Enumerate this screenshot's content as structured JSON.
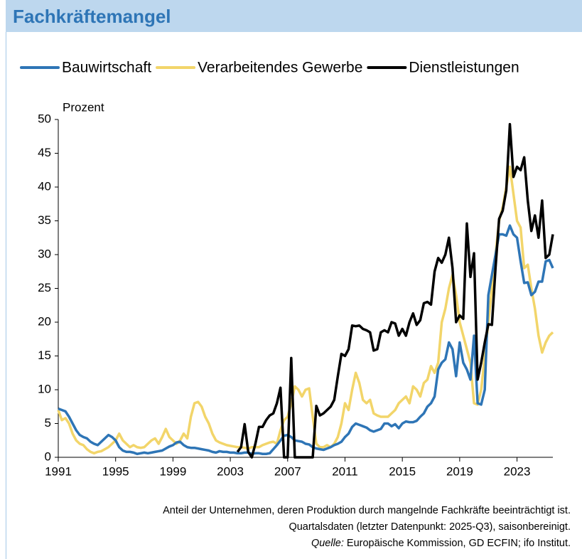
{
  "chart_data": {
    "type": "line",
    "title": "Fachkräftemangel",
    "y_label": "Prozent",
    "footnote": [
      "Anteil der Unternehmen, deren Produktion durch mangelnde Fachkräfte beeinträchtigt ist.",
      "Quartalsdaten (letzter Datenpunkt: 2025-Q3), saisonbereinigt."
    ],
    "source_label": "Quelle:",
    "source_text": "Europäische Kommission, GD ECFIN; ifo Institut.",
    "xlim": [
      1991,
      2025.5
    ],
    "xticks": [
      1991,
      1995,
      1999,
      2003,
      2007,
      2011,
      2015,
      2019,
      2023
    ],
    "ylim": [
      0,
      50
    ],
    "yticks": [
      0,
      5,
      10,
      15,
      20,
      25,
      30,
      35,
      40,
      45,
      50
    ],
    "grid": false,
    "legend": "top",
    "x": [
      1991,
      1991.25,
      1991.5,
      1991.75,
      1992,
      1992.25,
      1992.5,
      1992.75,
      1993,
      1993.25,
      1993.5,
      1993.75,
      1994,
      1994.25,
      1994.5,
      1994.75,
      1995,
      1995.25,
      1995.5,
      1995.75,
      1996,
      1996.25,
      1996.5,
      1996.75,
      1997,
      1997.25,
      1997.5,
      1997.75,
      1998,
      1998.25,
      1998.5,
      1998.75,
      1999,
      1999.25,
      1999.5,
      1999.75,
      2000,
      2000.25,
      2000.5,
      2000.75,
      2001,
      2001.25,
      2001.5,
      2001.75,
      2002,
      2002.25,
      2002.5,
      2002.75,
      2003,
      2003.25,
      2003.5,
      2003.75,
      2004,
      2004.25,
      2004.5,
      2004.75,
      2005,
      2005.25,
      2005.5,
      2005.75,
      2006,
      2006.25,
      2006.5,
      2006.75,
      2007,
      2007.25,
      2007.5,
      2007.75,
      2008,
      2008.25,
      2008.5,
      2008.75,
      2009,
      2009.25,
      2009.5,
      2009.75,
      2010,
      2010.25,
      2010.5,
      2010.75,
      2011,
      2011.25,
      2011.5,
      2011.75,
      2012,
      2012.25,
      2012.5,
      2012.75,
      2013,
      2013.25,
      2013.5,
      2013.75,
      2014,
      2014.25,
      2014.5,
      2014.75,
      2015,
      2015.25,
      2015.5,
      2015.75,
      2016,
      2016.25,
      2016.5,
      2016.75,
      2017,
      2017.25,
      2017.5,
      2017.75,
      2018,
      2018.25,
      2018.5,
      2018.75,
      2019,
      2019.25,
      2019.5,
      2019.75,
      2020,
      2020.25,
      2020.5,
      2020.75,
      2021,
      2021.25,
      2021.5,
      2021.75,
      2022,
      2022.25,
      2022.5,
      2022.75,
      2023,
      2023.25,
      2023.5,
      2023.75,
      2024,
      2024.25,
      2024.5,
      2024.75,
      2025,
      2025.25,
      2025.5
    ],
    "series": [
      {
        "name": "Bauwirtschaft",
        "color": "#2e75b6",
        "values": [
          7.2,
          7.0,
          6.8,
          6.0,
          5.0,
          4.0,
          3.3,
          3.0,
          2.8,
          2.3,
          2.0,
          1.8,
          2.3,
          2.8,
          3.3,
          3.0,
          2.5,
          1.5,
          1.0,
          0.8,
          0.8,
          0.7,
          0.5,
          0.6,
          0.7,
          0.6,
          0.7,
          0.8,
          0.9,
          1.0,
          1.3,
          1.6,
          1.8,
          2.2,
          2.3,
          1.8,
          1.5,
          1.4,
          1.4,
          1.3,
          1.2,
          1.1,
          1.0,
          0.8,
          0.7,
          0.9,
          0.8,
          0.8,
          0.7,
          0.7,
          0.6,
          0.6,
          0.7,
          0.7,
          0.5,
          0.6,
          0.6,
          0.5,
          0.5,
          0.6,
          1.2,
          1.8,
          2.5,
          3.2,
          3.3,
          3.0,
          2.5,
          2.4,
          2.3,
          2.0,
          1.9,
          1.5,
          1.3,
          1.2,
          1.1,
          1.3,
          1.5,
          1.8,
          2.0,
          2.3,
          3.0,
          3.5,
          4.5,
          5.0,
          4.8,
          4.6,
          4.4,
          4.0,
          3.8,
          4.0,
          4.2,
          5.0,
          5.0,
          4.6,
          4.9,
          4.3,
          5.0,
          5.3,
          5.2,
          5.2,
          5.4,
          6.0,
          6.5,
          7.5,
          8.0,
          9.0,
          13.0,
          14.0,
          14.5,
          17.0,
          16.0,
          12.0,
          17.0,
          14.0,
          13.0,
          11.5,
          18.0,
          8.0,
          7.8,
          10.0,
          24.0,
          27.0,
          30.0,
          33.0,
          33.0,
          32.8,
          34.3,
          33.0,
          32.5,
          29.0,
          25.8,
          25.9,
          24.0,
          24.5,
          26.0,
          26.0,
          29.0,
          29.2,
          28.0
        ]
      },
      {
        "name": "Verarbeitendes Gewerbe",
        "color": "#f2d56a",
        "values": [
          7.0,
          5.5,
          5.8,
          5.0,
          3.5,
          2.5,
          2.0,
          1.8,
          1.2,
          0.8,
          0.6,
          0.8,
          0.9,
          1.2,
          1.5,
          2.0,
          2.5,
          3.5,
          2.5,
          2.0,
          1.5,
          1.8,
          1.5,
          1.4,
          1.5,
          2.0,
          2.5,
          2.8,
          2.0,
          3.0,
          4.2,
          3.0,
          2.5,
          2.0,
          2.5,
          3.5,
          2.8,
          6.0,
          8.0,
          8.2,
          7.5,
          6.0,
          5.0,
          3.5,
          2.5,
          2.2,
          2.0,
          1.8,
          1.7,
          1.6,
          1.5,
          1.5,
          1.4,
          1.3,
          1.5,
          1.5,
          1.5,
          1.8,
          2.0,
          2.2,
          2.3,
          2.0,
          4.0,
          5.5,
          6.0,
          8.0,
          10.5,
          10.0,
          9.0,
          10.0,
          10.2,
          6.0,
          2.0,
          1.5,
          1.5,
          1.8,
          1.5,
          2.0,
          3.0,
          5.0,
          8.0,
          7.0,
          10.0,
          12.5,
          11.0,
          8.5,
          8.0,
          8.5,
          6.5,
          6.2,
          6.0,
          6.0,
          6.0,
          6.5,
          7.0,
          8.0,
          8.5,
          9.0,
          8.0,
          10.5,
          10.0,
          9.0,
          11.0,
          11.5,
          13.5,
          12.5,
          14.0,
          20.0,
          22.0,
          25.0,
          27.0,
          24.0,
          20.0,
          18.0,
          16.0,
          14.0,
          8.0,
          7.8,
          10.0,
          15.0,
          20.0,
          25.0,
          30.0,
          35.0,
          37.0,
          40.0,
          43.0,
          39.0,
          35.0,
          34.0,
          28.0,
          28.5,
          25.0,
          22.0,
          18.0,
          15.5,
          17.0,
          18.0,
          18.5
        ]
      },
      {
        "name": "Dienstleistungen",
        "color": "#000000",
        "values": [
          null,
          null,
          null,
          null,
          null,
          null,
          null,
          null,
          null,
          null,
          null,
          null,
          null,
          null,
          null,
          null,
          null,
          null,
          null,
          null,
          null,
          null,
          null,
          null,
          null,
          null,
          null,
          null,
          null,
          null,
          null,
          null,
          null,
          null,
          null,
          null,
          null,
          null,
          null,
          null,
          null,
          null,
          null,
          null,
          null,
          null,
          null,
          null,
          null,
          null,
          0.8,
          1.5,
          4.9,
          0.8,
          0.0,
          2.0,
          4.5,
          4.5,
          5.5,
          6.2,
          6.5,
          8.0,
          10.3,
          0.0,
          0.0,
          14.7,
          0.0,
          0.0,
          0.0,
          0.0,
          0.0,
          0.0,
          7.6,
          6.2,
          6.5,
          7.0,
          7.5,
          8.5,
          12.0,
          15.3,
          15.0,
          16.0,
          19.5,
          19.4,
          19.5,
          19.0,
          18.8,
          18.5,
          15.8,
          16.0,
          18.5,
          18.8,
          18.5,
          20.0,
          19.8,
          18.0,
          19.0,
          18.0,
          20.0,
          21.3,
          19.6,
          20.3,
          22.8,
          23.0,
          22.6,
          27.5,
          29.5,
          28.8,
          30.0,
          32.5,
          28.0,
          20.0,
          21.0,
          20.5,
          34.6,
          26.7,
          30.2,
          11.5,
          14.0,
          17.0,
          19.7,
          19.6,
          28.0,
          35.3,
          36.5,
          39.5,
          49.3,
          41.5,
          43.0,
          42.5,
          44.4,
          38.0,
          33.5,
          35.8,
          32.5,
          38.0,
          29.5,
          30.0,
          33.0
        ]
      }
    ]
  }
}
